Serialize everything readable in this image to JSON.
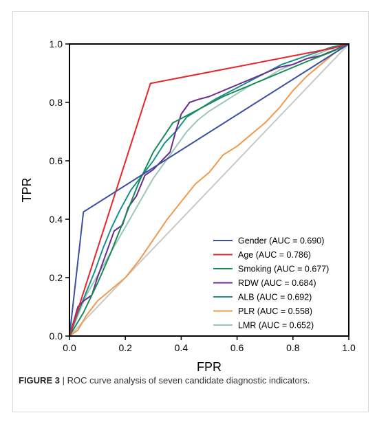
{
  "chart_data": {
    "type": "line",
    "xlabel": "FPR",
    "ylabel": "TPR",
    "xlim": [
      0.0,
      1.0
    ],
    "ylim": [
      0.0,
      1.0
    ],
    "xticks": [
      "0.0",
      "0.2",
      "0.4",
      "0.6",
      "0.8",
      "1.0"
    ],
    "yticks": [
      "0.0",
      "0.2",
      "0.4",
      "0.6",
      "0.8",
      "1.0"
    ],
    "grid": false,
    "legend_position": "bottom-right",
    "reference_line": {
      "color": "#c8c8c8",
      "x": [
        0,
        1
      ],
      "y": [
        0,
        1
      ]
    },
    "series": [
      {
        "name": "Gender (AUC = 0.690)",
        "color": "#3a4fa0",
        "x": [
          0,
          0.05,
          1.0
        ],
        "y": [
          0,
          0.425,
          1.0
        ]
      },
      {
        "name": "Age (AUC = 0.786)",
        "color": "#e8242b",
        "x": [
          0,
          0.29,
          0.94,
          1.0
        ],
        "y": [
          0,
          0.865,
          0.985,
          1.0
        ]
      },
      {
        "name": "Smoking (AUC = 0.677)",
        "color": "#1a8a55",
        "x": [
          0,
          0.05,
          0.1,
          0.15,
          0.2,
          0.25,
          0.3,
          0.37,
          0.45,
          0.55,
          0.65,
          0.75,
          0.85,
          0.93,
          1.0
        ],
        "y": [
          0,
          0.08,
          0.18,
          0.29,
          0.41,
          0.53,
          0.63,
          0.73,
          0.77,
          0.82,
          0.86,
          0.9,
          0.94,
          0.97,
          1.0
        ]
      },
      {
        "name": "RDW (AUC = 0.684)",
        "color": "#6a2c8f",
        "x": [
          0,
          0.03,
          0.05,
          0.08,
          0.1,
          0.13,
          0.16,
          0.19,
          0.21,
          0.24,
          0.27,
          0.3,
          0.33,
          0.36,
          0.38,
          0.4,
          0.43,
          0.46,
          0.5,
          0.55,
          0.6,
          0.65,
          0.7,
          0.75,
          0.8,
          0.85,
          0.9,
          0.95,
          1.0
        ],
        "y": [
          0,
          0.1,
          0.12,
          0.14,
          0.2,
          0.28,
          0.36,
          0.38,
          0.44,
          0.48,
          0.55,
          0.57,
          0.6,
          0.63,
          0.7,
          0.76,
          0.8,
          0.81,
          0.82,
          0.84,
          0.86,
          0.88,
          0.9,
          0.92,
          0.93,
          0.95,
          0.96,
          0.98,
          1.0
        ]
      },
      {
        "name": "ALB (AUC = 0.692)",
        "color": "#18908e",
        "x": [
          0,
          0.03,
          0.06,
          0.09,
          0.12,
          0.15,
          0.18,
          0.22,
          0.26,
          0.3,
          0.34,
          0.38,
          0.42,
          0.47,
          0.52,
          0.58,
          0.64,
          0.7,
          0.76,
          0.82,
          0.88,
          0.94,
          1.0
        ],
        "y": [
          0,
          0.08,
          0.15,
          0.22,
          0.3,
          0.37,
          0.43,
          0.5,
          0.55,
          0.6,
          0.66,
          0.7,
          0.75,
          0.78,
          0.81,
          0.84,
          0.87,
          0.9,
          0.93,
          0.95,
          0.97,
          0.99,
          1.0
        ]
      },
      {
        "name": "PLR (AUC = 0.558)",
        "color": "#f09a4f",
        "x": [
          0,
          0.03,
          0.06,
          0.1,
          0.15,
          0.2,
          0.25,
          0.3,
          0.35,
          0.4,
          0.45,
          0.5,
          0.55,
          0.6,
          0.65,
          0.7,
          0.75,
          0.8,
          0.85,
          0.9,
          0.95,
          1.0
        ],
        "y": [
          0,
          0.02,
          0.07,
          0.12,
          0.16,
          0.2,
          0.26,
          0.33,
          0.4,
          0.46,
          0.52,
          0.56,
          0.62,
          0.65,
          0.69,
          0.73,
          0.78,
          0.84,
          0.89,
          0.93,
          0.97,
          1.0
        ]
      },
      {
        "name": "LMR (AUC = 0.652)",
        "color": "#9cc7b6",
        "x": [
          0,
          0.03,
          0.06,
          0.09,
          0.12,
          0.15,
          0.18,
          0.21,
          0.24,
          0.27,
          0.3,
          0.33,
          0.36,
          0.39,
          0.42,
          0.46,
          0.5,
          0.55,
          0.6,
          0.65,
          0.7,
          0.75,
          0.8,
          0.85,
          0.9,
          0.95,
          1.0
        ],
        "y": [
          0,
          0.07,
          0.14,
          0.19,
          0.24,
          0.29,
          0.34,
          0.39,
          0.44,
          0.49,
          0.54,
          0.58,
          0.62,
          0.66,
          0.7,
          0.74,
          0.77,
          0.8,
          0.83,
          0.86,
          0.88,
          0.91,
          0.93,
          0.95,
          0.97,
          0.99,
          1.0
        ]
      }
    ]
  },
  "caption": {
    "label": "FIGURE 3",
    "separator": " | ",
    "text": "ROC curve analysis of seven candidate diagnostic indicators."
  }
}
